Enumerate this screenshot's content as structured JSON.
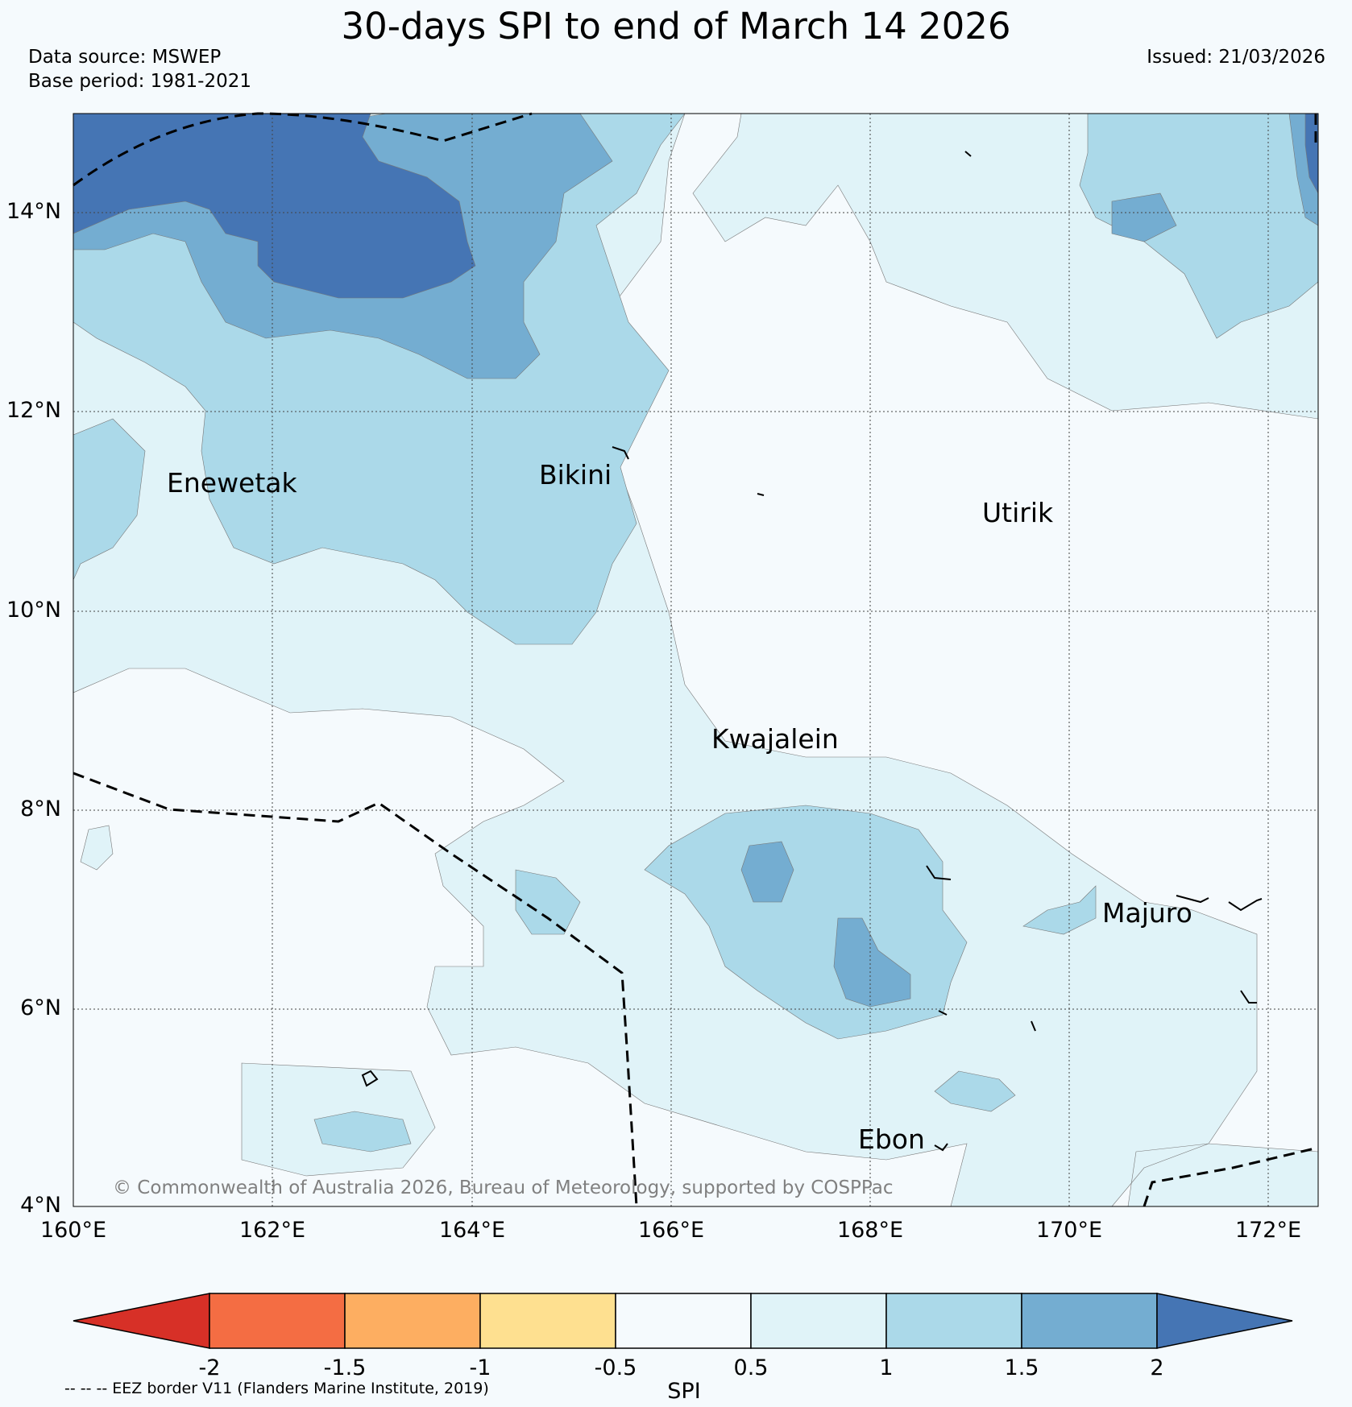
{
  "title": "30-days SPI to end of March 14 2026",
  "source": "Data source: MSWEP",
  "base_period": "Base period: 1981-2021",
  "issued": "Issued: 21/03/2026",
  "latitude_labels": [
    "14°N",
    "12°N",
    "10°N",
    "8°N",
    "6°N",
    "4°N"
  ],
  "longitude_labels": [
    "160°E",
    "162°E",
    "164°E",
    "166°E",
    "168°E",
    "170°E",
    "172°E"
  ],
  "places": {
    "enewetak": "Enewetak",
    "bikini": "Bikini",
    "utirik": "Utirik",
    "kwajalein": "Kwajalein",
    "majuro": "Majuro",
    "ebon": "Ebon"
  },
  "copyright": "© Commonwealth of Australia 2026, Bureau of Meteorology, supported by COSPPac",
  "colorbar": {
    "title": "SPI",
    "tick_labels": [
      "-2",
      "-1.5",
      "-1",
      "-0.5",
      "0.5",
      "1",
      "1.5",
      "2"
    ],
    "colors": [
      "#d73027",
      "#f46d43",
      "#fdae61",
      "#fee090",
      "#f5fafd",
      "#e0f3f8",
      "#abd9e9",
      "#74add1",
      "#4575b4"
    ]
  },
  "eez_note": "-- -- -- EEZ border V11 (Flanders Marine Institute, 2019)"
}
